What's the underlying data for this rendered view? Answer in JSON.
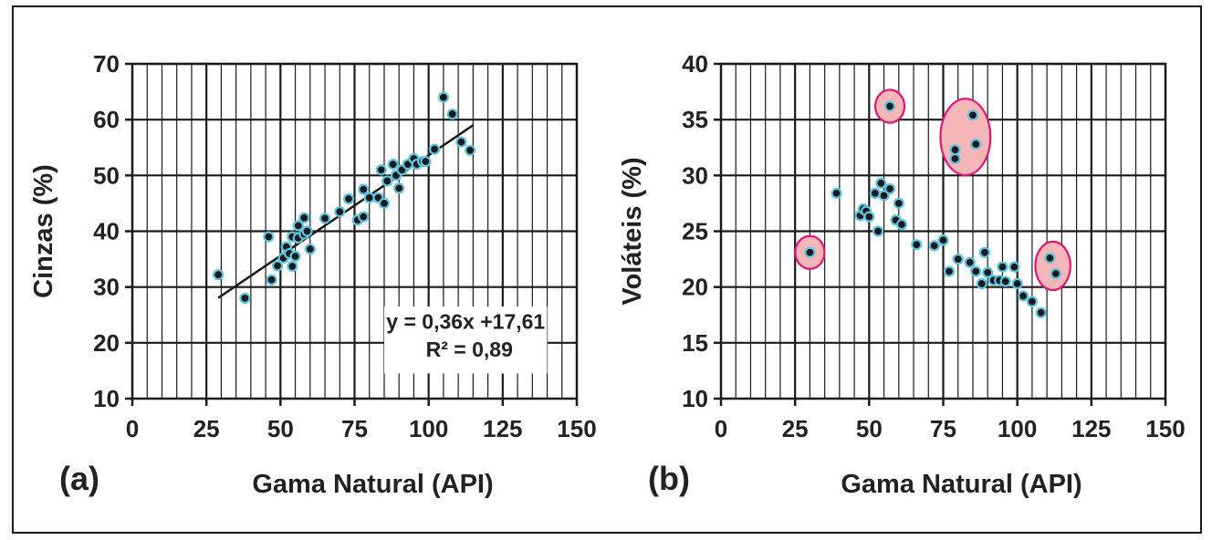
{
  "chart_data": [
    {
      "type": "scatter",
      "panel_label": "(a)",
      "xlabel": "Gama Natural (API)",
      "ylabel": "Cinzas (%)",
      "xlim": [
        0,
        150
      ],
      "ylim": [
        10,
        70
      ],
      "xticks": [
        "0",
        "25",
        "50",
        "75",
        "100",
        "125",
        "150"
      ],
      "yticks": [
        "10",
        "20",
        "30",
        "40",
        "50",
        "60",
        "70"
      ],
      "grid": true,
      "equation": "y = 0,36x +17,61",
      "r2": "R² = 0,89",
      "trendline": {
        "slope": 0.36,
        "intercept": 17.61,
        "x_range": [
          29,
          115
        ]
      },
      "points": [
        [
          29,
          32.2
        ],
        [
          38,
          28
        ],
        [
          46,
          39
        ],
        [
          47,
          31.3
        ],
        [
          49,
          33.8
        ],
        [
          51,
          35.2
        ],
        [
          52,
          37.2
        ],
        [
          53,
          36
        ],
        [
          54,
          39
        ],
        [
          54,
          33.7
        ],
        [
          55,
          35.5
        ],
        [
          56,
          38.8
        ],
        [
          56,
          41
        ],
        [
          58,
          42.4
        ],
        [
          58,
          39.5
        ],
        [
          59,
          40
        ],
        [
          60,
          36.8
        ],
        [
          65,
          42.3
        ],
        [
          70,
          43.5
        ],
        [
          73,
          45.8
        ],
        [
          76,
          42
        ],
        [
          78,
          47.5
        ],
        [
          78,
          42.6
        ],
        [
          80,
          46
        ],
        [
          83,
          46
        ],
        [
          84,
          51
        ],
        [
          85,
          45
        ],
        [
          86,
          49
        ],
        [
          88,
          52
        ],
        [
          89,
          50
        ],
        [
          90,
          47.7
        ],
        [
          91,
          51
        ],
        [
          93,
          52
        ],
        [
          95,
          53
        ],
        [
          96,
          52
        ],
        [
          98,
          52.5
        ],
        [
          99,
          52.5
        ],
        [
          102,
          54.7
        ],
        [
          105,
          64
        ],
        [
          108,
          61
        ],
        [
          111,
          56
        ],
        [
          114,
          54.5
        ]
      ]
    },
    {
      "type": "scatter",
      "panel_label": "(b)",
      "xlabel": "Gama Natural (API)",
      "ylabel": "Voláteis (%)",
      "xlim": [
        0,
        150
      ],
      "ylim": [
        10,
        40
      ],
      "xticks": [
        "0",
        "25",
        "50",
        "75",
        "100",
        "125",
        "150"
      ],
      "yticks": [
        "10",
        "15",
        "20",
        "25",
        "30",
        "35",
        "40"
      ],
      "grid": true,
      "highlight_color": "#f4b6b6",
      "highlight_outline": "#e0157a",
      "highlight_groups": [
        {
          "points": [
            [
              30,
              23.1
            ]
          ]
        },
        {
          "points": [
            [
              57,
              36.2
            ]
          ]
        },
        {
          "points": [
            [
              79,
              31.5
            ],
            [
              79,
              32.3
            ],
            [
              85,
              35.4
            ],
            [
              86,
              32.8
            ]
          ]
        },
        {
          "points": [
            [
              111,
              22.6
            ],
            [
              113,
              21.2
            ]
          ]
        }
      ],
      "points": [
        [
          30,
          23.1
        ],
        [
          39,
          28.4
        ],
        [
          47,
          26.4
        ],
        [
          48,
          27
        ],
        [
          49,
          26.8
        ],
        [
          50,
          26.3
        ],
        [
          52,
          28.4
        ],
        [
          53,
          25
        ],
        [
          54,
          29.3
        ],
        [
          55,
          28.2
        ],
        [
          57,
          28.8
        ],
        [
          59,
          26
        ],
        [
          60,
          27.5
        ],
        [
          61,
          25.6
        ],
        [
          66,
          23.8
        ],
        [
          72,
          23.7
        ],
        [
          75,
          24.2
        ],
        [
          77,
          21.4
        ],
        [
          80,
          22.5
        ],
        [
          84,
          22.2
        ],
        [
          86,
          21.4
        ],
        [
          88,
          20.3
        ],
        [
          89,
          23.1
        ],
        [
          90,
          21.3
        ],
        [
          92,
          20.6
        ],
        [
          94,
          20.6
        ],
        [
          95,
          21.8
        ],
        [
          96,
          20.5
        ],
        [
          99,
          21.8
        ],
        [
          100,
          20.3
        ],
        [
          102,
          19.2
        ],
        [
          105,
          18.7
        ],
        [
          108,
          17.7
        ],
        [
          57,
          36.2
        ],
        [
          79,
          31.5
        ],
        [
          79,
          32.3
        ],
        [
          85,
          35.4
        ],
        [
          86,
          32.8
        ],
        [
          111,
          22.6
        ],
        [
          113,
          21.2
        ]
      ]
    }
  ]
}
